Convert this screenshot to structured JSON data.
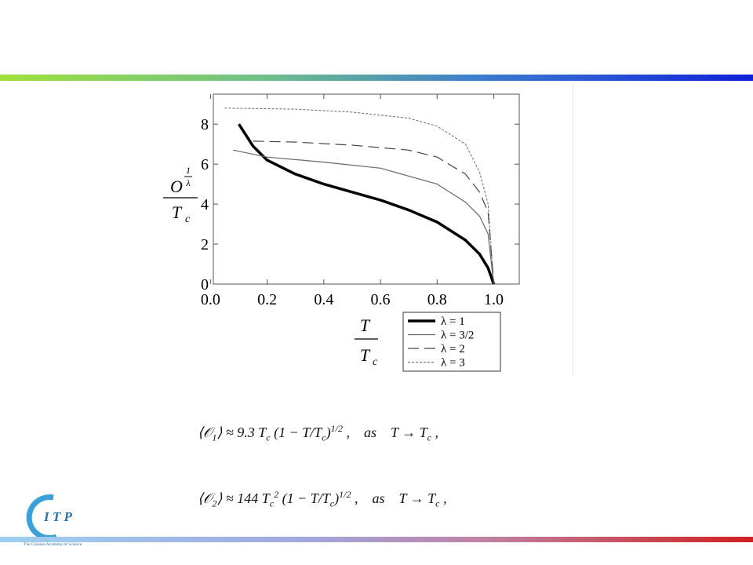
{
  "chart_data": {
    "type": "line",
    "ylabel": [
      "O",
      "1",
      "λ",
      "T",
      "c"
    ],
    "xlabel": [
      "T",
      "T",
      "c"
    ],
    "xlim": [
      0.01,
      1.09
    ],
    "ylim": [
      0,
      9.5
    ],
    "xticks": [
      {
        "value": 0,
        "label": "0.0"
      },
      0.2,
      0.4,
      0.6,
      0.8,
      {
        "value": 1,
        "label": "1.0"
      }
    ],
    "yticks": [
      0,
      2,
      4,
      6,
      8
    ],
    "legend": "bottom-right",
    "series": [
      {
        "name": "λ = 1",
        "color": "#000000",
        "style": "solid",
        "line_width": 3.5,
        "x": [
          0.1,
          0.15,
          0.2,
          0.3,
          0.4,
          0.5,
          0.6,
          0.7,
          0.8,
          0.9,
          0.95,
          0.98,
          1.0
        ],
        "values": [
          8,
          6.9,
          6.2,
          5.5,
          5.0,
          4.6,
          4.2,
          3.7,
          3.1,
          2.2,
          1.5,
          0.8,
          0
        ]
      },
      {
        "name": "λ = 3/2",
        "color": "#666666",
        "style": "solid",
        "line_width": 1.2,
        "x": [
          0.08,
          0.2,
          0.4,
          0.6,
          0.8,
          0.9,
          0.95,
          0.98,
          1.0
        ],
        "values": [
          6.7,
          6.35,
          6.1,
          5.8,
          5.0,
          4.1,
          3.4,
          2.5,
          0
        ]
      },
      {
        "name": "λ = 2",
        "color": "#444444",
        "style": "dashed",
        "line_width": 1.2,
        "x": [
          0.15,
          0.3,
          0.5,
          0.7,
          0.8,
          0.9,
          0.95,
          0.98,
          1.0
        ],
        "values": [
          7.15,
          7.1,
          6.95,
          6.7,
          6.35,
          5.5,
          4.6,
          3.6,
          0
        ]
      },
      {
        "name": "λ = 3",
        "color": "#666666",
        "style": "dotted",
        "line_width": 1,
        "x": [
          0.05,
          0.3,
          0.5,
          0.7,
          0.8,
          0.9,
          0.95,
          0.98,
          1.0
        ],
        "values": [
          8.8,
          8.75,
          8.6,
          8.3,
          7.9,
          7.0,
          5.6,
          4.0,
          0
        ]
      }
    ]
  },
  "formulas": [
    [
      "⟨𝒪",
      "1",
      "⟩ ≈ 9.3 T",
      "c",
      " (1 − T/T",
      "c",
      ")",
      "1/2",
      " ,    as    T → T",
      "c",
      " ,"
    ],
    [
      "⟨𝒪",
      "2",
      "⟩ ≈ 144 T",
      "c",
      "2",
      " (1 − T/T",
      "c",
      ")",
      "1/2",
      " ,    as    T → T",
      "c",
      " ,"
    ]
  ],
  "logo": {
    "letters": "I T P",
    "caption": "The Chinese Academy of Science"
  }
}
